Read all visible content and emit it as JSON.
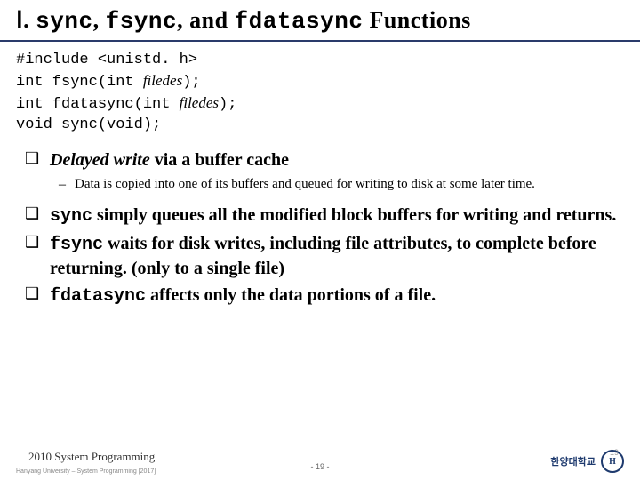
{
  "title": {
    "roman_prefix": "Ⅰ. ",
    "func1": "sync",
    "sep1": ", ",
    "func2": "fsync",
    "sep2": ", and ",
    "func3": "fdatasync",
    "suffix": " Functions"
  },
  "code": {
    "line1": "#include <unistd. h>",
    "line2_a": "int fsync(int ",
    "line2_b": "filedes",
    "line2_c": ");",
    "line3_a": "int fdatasync(int ",
    "line3_b": "filedes",
    "line3_c": ");",
    "line4": "void sync(void);"
  },
  "bullets": {
    "b1_a": "Delayed write",
    "b1_b": " via a buffer cache",
    "b1_sub": "Data is copied into one of its buffers and queued for writing to disk at some later time.",
    "b2_a": "sync",
    "b2_b": " simply queues all the modified block buffers for writing and returns.",
    "b3_a": "fsync",
    "b3_b": " waits for disk writes, including file attributes, to complete before returning. (only to a single file)",
    "b4_a": "fdatasync",
    "b4_b": " affects only the data portions of a file."
  },
  "footer": {
    "left": "2010 System Programming",
    "left_small": "Hanyang University – System Programming [2017]",
    "center": "- 19 -",
    "right_num": "19",
    "logo_text": "한양대학교",
    "logo_seal": "H"
  },
  "colors": {
    "rule": "#2a3b6b",
    "text": "#000000",
    "logo": "#1e3a6e"
  }
}
